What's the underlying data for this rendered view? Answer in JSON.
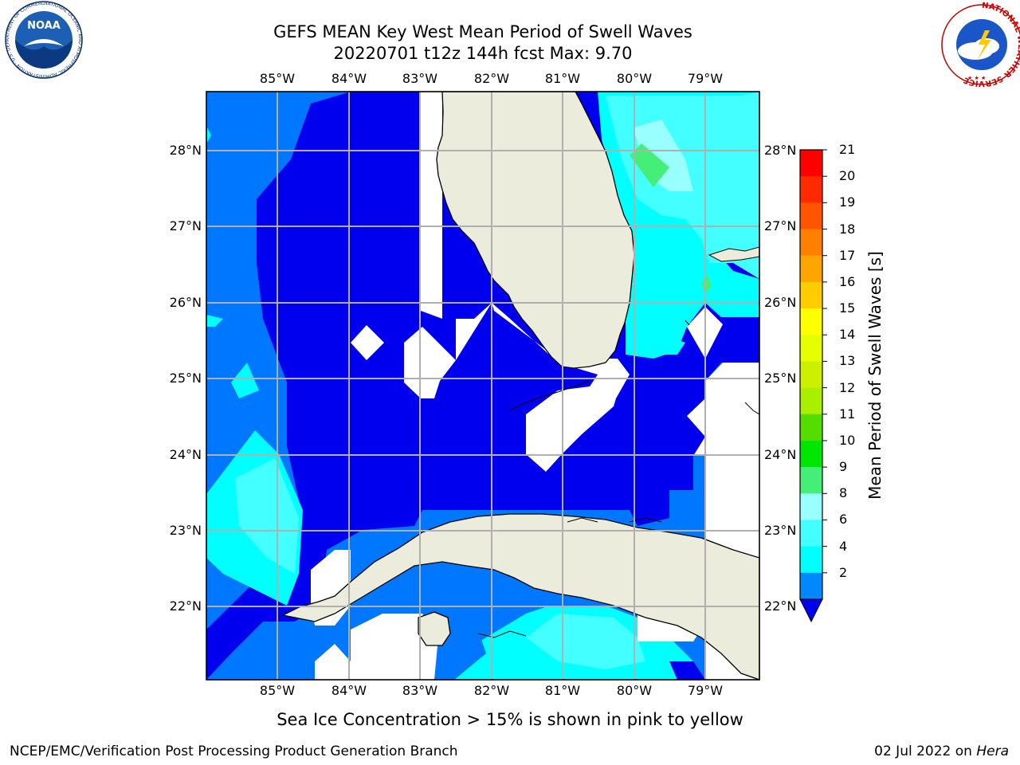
{
  "title": {
    "line1": "GEFS MEAN Key West Mean Period of Swell Waves",
    "line2": "20220701 t12z 144h fcst   Max: 9.70"
  },
  "map": {
    "lon_ticks": [
      "85°W",
      "84°W",
      "83°W",
      "82°W",
      "81°W",
      "80°W",
      "79°W"
    ],
    "lat_ticks": [
      "28°N",
      "27°N",
      "26°N",
      "25°N",
      "24°N",
      "23°N",
      "22°N"
    ],
    "lon_range": [
      -86.0,
      -78.25
    ],
    "lat_range": [
      21.05,
      28.75
    ]
  },
  "colorbar": {
    "title": "Mean Period of Swell Waves [s]",
    "levels": [
      "21",
      "20",
      "19",
      "18",
      "17",
      "16",
      "15",
      "14",
      "13",
      "12",
      "11",
      "10",
      "9",
      "8",
      "6",
      "4",
      "2"
    ],
    "colors": [
      "#ff0000",
      "#ff2a00",
      "#ff5500",
      "#ff7f00",
      "#ffa500",
      "#ffcc00",
      "#ffff00",
      "#e6ff00",
      "#ccf000",
      "#aaee00",
      "#55dd00",
      "#00e600",
      "#44ee77",
      "#99ffff",
      "#44ffff",
      "#00ffff",
      "#0088ff"
    ],
    "under_color": "#0000ee"
  },
  "logos": {
    "noaa_text": "NOAA",
    "noaa_ring": "NATIONAL OCEANIC AND ATMOSPHERIC ADMINISTRATION · U.S. DEPARTMENT OF COMMERCE",
    "nws_ring": "NATIONAL WEATHER SERVICE"
  },
  "note": "Sea Ice Concentration > 15% is shown in pink to yellow",
  "footer": {
    "left": "NCEP/EMC/Verification Post Processing Product Generation Branch",
    "date": "02 Jul 2022 on ",
    "machine": "Hera"
  }
}
